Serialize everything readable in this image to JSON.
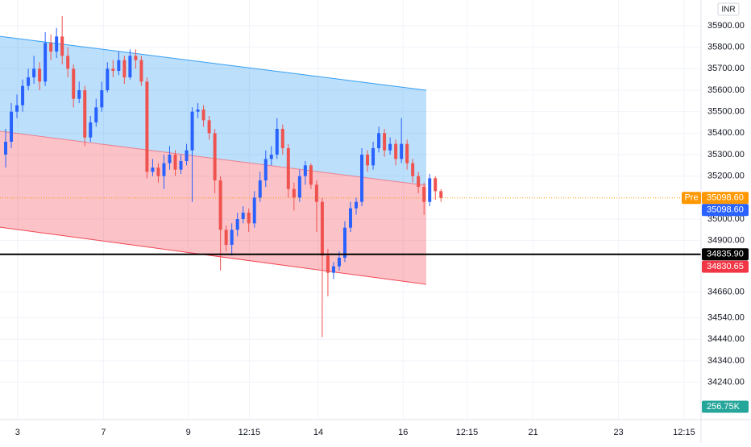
{
  "chart_data": {
    "type": "candlestick",
    "currency": "INR",
    "xlim": [
      0,
      124
    ],
    "ylim": [
      34070,
      36020
    ],
    "grid": true,
    "up_color": "#2962ff",
    "down_color": "#ef5350",
    "xticks": [
      {
        "value": 3.1,
        "label": "3"
      },
      {
        "value": 18.3,
        "label": "7"
      },
      {
        "value": 33.3,
        "label": "9"
      },
      {
        "value": 44.1,
        "label": "12:15"
      },
      {
        "value": 56.3,
        "label": "14"
      },
      {
        "value": 71.3,
        "label": "16"
      },
      {
        "value": 82.6,
        "label": "12:15"
      },
      {
        "value": 94.3,
        "label": "21"
      },
      {
        "value": 109.4,
        "label": "23"
      },
      {
        "value": 121,
        "label": "12:15"
      }
    ],
    "yticks": [
      {
        "value": 35900,
        "label": "35900.00"
      },
      {
        "value": 35800,
        "label": "35800.00"
      },
      {
        "value": 35700,
        "label": "35700.00"
      },
      {
        "value": 35600,
        "label": "35600.00"
      },
      {
        "value": 35500,
        "label": "35500.00"
      },
      {
        "value": 35400,
        "label": "35400.00"
      },
      {
        "value": 35300,
        "label": "35300.00"
      },
      {
        "value": 35200,
        "label": "35200.00"
      },
      {
        "value": 35000,
        "label": "35000.00"
      },
      {
        "value": 34900,
        "label": "34900.00"
      },
      {
        "value": 34660,
        "label": "34660.00"
      },
      {
        "value": 34540,
        "label": "34540.00"
      },
      {
        "value": 34440,
        "label": "34440.00"
      },
      {
        "value": 34340,
        "label": "34340.00"
      },
      {
        "value": 34240,
        "label": "34240.00"
      }
    ],
    "x": [
      1,
      2,
      3,
      4,
      5,
      6,
      7,
      8,
      9,
      10,
      11,
      12,
      13,
      14,
      15,
      16,
      17,
      18,
      19,
      20,
      21,
      22,
      23,
      24,
      25,
      26,
      27,
      28,
      29,
      30,
      31,
      32,
      33,
      34,
      35,
      36,
      37,
      38,
      39,
      40,
      41,
      42,
      43,
      44,
      45,
      46,
      47,
      48,
      49,
      50,
      51,
      52,
      53,
      54,
      55,
      56,
      57,
      58,
      59,
      60,
      61,
      62,
      63,
      64,
      65,
      66,
      67,
      68,
      69,
      70,
      71,
      72,
      73,
      74,
      75,
      76,
      77,
      78
    ],
    "open": [
      35300,
      35360,
      35500,
      35530,
      35620,
      35660,
      35700,
      35640,
      35820,
      35780,
      35850,
      35760,
      35700,
      35560,
      35600,
      35380,
      35450,
      35520,
      35600,
      35700,
      35690,
      35740,
      35660,
      35760,
      35740,
      35640,
      35220,
      35240,
      35200,
      35260,
      35300,
      35230,
      35270,
      35320,
      35500,
      35510,
      35460,
      35400,
      35180,
      34950,
      34880,
      34950,
      35000,
      35030,
      34980,
      35100,
      35180,
      35280,
      35300,
      35420,
      35330,
      35140,
      35100,
      35200,
      35250,
      35160,
      35080,
      34830,
      34750,
      34780,
      34820,
      34960,
      35050,
      35080,
      35300,
      35250,
      35330,
      35400,
      35320,
      35350,
      35280,
      35350,
      35260,
      35200,
      35150,
      35080,
      35190,
      35130
    ],
    "high": [
      35420,
      35540,
      35580,
      35650,
      35700,
      35760,
      35730,
      35870,
      35860,
      35890,
      35945,
      35800,
      35720,
      35640,
      35620,
      35480,
      35560,
      35640,
      35730,
      35740,
      35780,
      35760,
      35790,
      35790,
      35760,
      35660,
      35280,
      35260,
      35300,
      35340,
      35320,
      35300,
      35350,
      35520,
      35540,
      35530,
      35480,
      35420,
      35200,
      34970,
      34980,
      35030,
      35060,
      35050,
      35130,
      35220,
      35320,
      35340,
      35470,
      35440,
      35350,
      35170,
      35230,
      35270,
      35260,
      35180,
      35100,
      34860,
      34800,
      34850,
      34990,
      35080,
      35100,
      35330,
      35320,
      35360,
      35430,
      35420,
      35380,
      35370,
      35470,
      35370,
      35280,
      35220,
      35170,
      35210,
      35200,
      35140
    ],
    "low": [
      35240,
      35330,
      35470,
      35500,
      35600,
      35630,
      35600,
      35620,
      35740,
      35750,
      35720,
      35660,
      35520,
      35540,
      35340,
      35360,
      35430,
      35500,
      35590,
      35660,
      35670,
      35630,
      35650,
      35700,
      35620,
      35190,
      35200,
      35170,
      35140,
      35230,
      35200,
      35210,
      35250,
      35080,
      35470,
      35430,
      35370,
      35120,
      34760,
      34850,
      34830,
      34920,
      34980,
      34940,
      34960,
      35080,
      35150,
      35250,
      35280,
      35300,
      35100,
      35040,
      35080,
      35160,
      35140,
      34940,
      34450,
      34640,
      34720,
      34760,
      34800,
      34940,
      35020,
      35060,
      35220,
      35230,
      35310,
      35290,
      35300,
      35250,
      35260,
      35230,
      35170,
      35120,
      35020,
      35060,
      35090,
      35080
    ],
    "close": [
      35360,
      35500,
      35530,
      35620,
      35660,
      35700,
      35640,
      35820,
      35780,
      35850,
      35760,
      35700,
      35560,
      35600,
      35380,
      35450,
      35520,
      35600,
      35700,
      35690,
      35740,
      35660,
      35760,
      35740,
      35640,
      35220,
      35240,
      35200,
      35260,
      35300,
      35230,
      35270,
      35320,
      35500,
      35510,
      35460,
      35400,
      35180,
      34950,
      34880,
      34950,
      35000,
      35030,
      34980,
      35100,
      35180,
      35280,
      35300,
      35420,
      35330,
      35140,
      35100,
      35200,
      35250,
      35160,
      35080,
      34830,
      34750,
      34780,
      34820,
      34960,
      35050,
      35080,
      35300,
      35250,
      35330,
      35400,
      35320,
      35350,
      35280,
      35350,
      35260,
      35200,
      35150,
      35080,
      35190,
      35130,
      35098.6
    ],
    "channel": {
      "x": [
        0,
        75.4
      ],
      "upper": [
        35851,
        35600
      ],
      "middle": [
        35409,
        35157
      ],
      "lower": [
        34962,
        34696
      ],
      "upper_color": "#2196f3",
      "lower_color": "#f23645"
    },
    "horizontal_line": {
      "value": 34835.9,
      "label": "34835.90"
    },
    "alert_price": {
      "value": 34830.65,
      "label": "34830.65"
    },
    "last_price": {
      "value": 35098.6,
      "label": "35098.60"
    },
    "premarket": {
      "tag": "Pre",
      "value": 35098.6,
      "label": "35098.60"
    },
    "volume_label": "256.75K"
  }
}
